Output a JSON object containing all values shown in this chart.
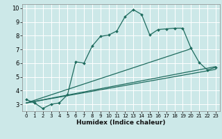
{
  "xlabel": "Humidex (Indice chaleur)",
  "bg_color": "#cce8e8",
  "grid_color": "#ffffff",
  "line_color": "#1e6b5e",
  "xlim": [
    -0.5,
    23.5
  ],
  "ylim": [
    2.5,
    10.3
  ],
  "xticks": [
    0,
    1,
    2,
    3,
    4,
    5,
    6,
    7,
    8,
    9,
    10,
    11,
    12,
    13,
    14,
    15,
    16,
    17,
    18,
    19,
    20,
    21,
    22,
    23
  ],
  "yticks": [
    3,
    4,
    5,
    6,
    7,
    8,
    9,
    10
  ],
  "line1_x": [
    0,
    1,
    2,
    3,
    4,
    5,
    6,
    7,
    8,
    9,
    10,
    11,
    12,
    13,
    14,
    15,
    16,
    17,
    18,
    19,
    20,
    21,
    22,
    23
  ],
  "line1_y": [
    3.35,
    3.1,
    2.7,
    3.0,
    3.1,
    3.7,
    6.1,
    6.0,
    7.25,
    7.95,
    8.05,
    8.35,
    9.4,
    9.9,
    9.55,
    8.05,
    8.45,
    8.5,
    8.55,
    8.55,
    7.1,
    6.05,
    5.5,
    5.7
  ],
  "line2_x": [
    0,
    23
  ],
  "line2_y": [
    3.1,
    5.55
  ],
  "line3_x": [
    0,
    23
  ],
  "line3_y": [
    3.1,
    5.75
  ],
  "line4_x": [
    0,
    20
  ],
  "line4_y": [
    3.1,
    7.05
  ]
}
